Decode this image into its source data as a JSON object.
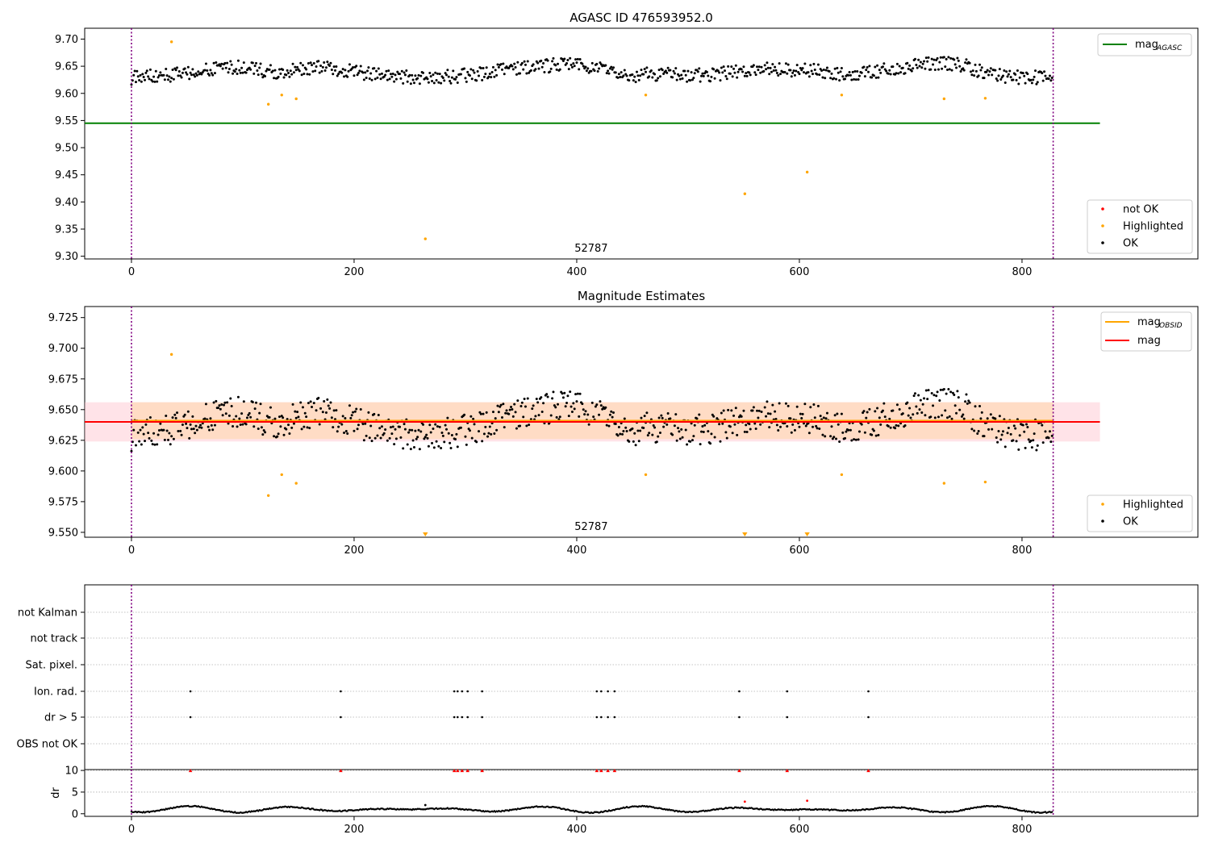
{
  "colors": {
    "ok": "#000000",
    "highlighted": "#ffa500",
    "not_ok": "#ff0000",
    "agasc_line": "#008000",
    "obsid_line": "#ffa500",
    "mag_line": "#ff0000",
    "obsid_band": "#ffdab9",
    "mag_band": "#ffc0cb",
    "boundary": "#800080",
    "grid": "#b0b0b0"
  },
  "chart_data": [
    {
      "type": "scatter",
      "title": "AGASC ID 476593952.0",
      "xlim": [
        -42,
        958
      ],
      "ylim": [
        9.295,
        9.72
      ],
      "xticks": [
        0,
        200,
        400,
        600,
        800
      ],
      "yticks": [
        9.3,
        9.35,
        9.4,
        9.45,
        9.5,
        9.55,
        9.6,
        9.65,
        9.7
      ],
      "ytick_labels": [
        "9.30",
        "9.35",
        "9.40",
        "9.45",
        "9.50",
        "9.55",
        "9.60",
        "9.65",
        "9.70"
      ],
      "hline": {
        "name": "mag",
        "subscript": "AGASC",
        "y": 9.545,
        "x_range": [
          -42,
          870
        ]
      },
      "obsid_boundaries": [
        0,
        828
      ],
      "obsid_labels": [
        {
          "x": 413,
          "text": "52787"
        }
      ],
      "series": [
        {
          "name": "not OK",
          "values": []
        },
        {
          "name": "Highlighted",
          "points": [
            [
              36,
              9.695
            ],
            [
              123,
              9.58
            ],
            [
              135,
              9.597
            ],
            [
              148,
              9.59
            ],
            [
              264,
              9.332
            ],
            [
              462,
              9.597
            ],
            [
              551,
              9.415
            ],
            [
              607,
              9.455
            ],
            [
              638,
              9.597
            ],
            [
              730,
              9.59
            ],
            [
              767,
              9.591
            ]
          ]
        },
        {
          "name": "OK",
          "n": 828,
          "note": "dense track around 9.61–9.68"
        }
      ],
      "legend": [
        "not OK",
        "Highlighted",
        "OK"
      ],
      "legend_upper": [
        "mag_AGASC"
      ]
    },
    {
      "type": "scatter",
      "title": "Magnitude Estimates",
      "xlim": [
        -42,
        958
      ],
      "ylim": [
        9.546,
        9.734
      ],
      "xticks": [
        0,
        200,
        400,
        600,
        800
      ],
      "yticks": [
        9.55,
        9.575,
        9.6,
        9.625,
        9.65,
        9.675,
        9.7,
        9.725
      ],
      "ytick_labels": [
        "9.550",
        "9.575",
        "9.600",
        "9.625",
        "9.650",
        "9.675",
        "9.700",
        "9.725"
      ],
      "mag_line": {
        "name": "mag",
        "y": 9.64,
        "band": [
          9.624,
          9.656
        ],
        "x_range": [
          -42,
          870
        ]
      },
      "obsid_line": {
        "name": "mag",
        "subscript": "OBSID",
        "y": 9.641,
        "band": [
          9.626,
          9.656
        ],
        "x_range": [
          0,
          828
        ]
      },
      "out_of_range_markers": [
        264,
        551,
        607
      ],
      "obsid_labels": [
        {
          "x": 413,
          "text": "52787"
        }
      ],
      "legend": [
        "Highlighted",
        "OK"
      ],
      "legend_upper": [
        "mag_OBSID",
        "mag"
      ]
    },
    {
      "type": "scatter",
      "title": "",
      "xlim": [
        -42,
        958
      ],
      "categories": [
        "not Kalman",
        "not track",
        "Sat. pixel.",
        "Ion. rad.",
        "dr > 5",
        "OBS not OK"
      ],
      "flag_points": {
        "Ion. rad.": [
          53,
          188,
          290,
          293,
          297,
          302,
          315,
          418,
          422,
          428,
          434,
          546,
          589,
          662
        ],
        "dr > 5": [
          53,
          188,
          290,
          293,
          297,
          302,
          315,
          418,
          422,
          428,
          434,
          546,
          589,
          662
        ]
      }
    },
    {
      "type": "scatter",
      "title": "",
      "ylabel": "dr",
      "xlim": [
        -42,
        958
      ],
      "ylim": [
        -0.6,
        10.2
      ],
      "xticks": [
        0,
        200,
        400,
        600,
        800
      ],
      "yticks": [
        0,
        5,
        10
      ],
      "clipped_at_10": [
        53,
        188,
        290,
        293,
        297,
        302,
        315,
        418,
        422,
        428,
        434,
        546,
        589,
        662
      ],
      "outliers": [
        [
          264,
          2.0
        ],
        [
          551,
          2.8
        ],
        [
          607,
          3.0
        ]
      ],
      "n": 828,
      "note": "baseline dr oscillates between ~0.2 and ~1.8"
    }
  ],
  "axes": {
    "top": {
      "title": "AGASC ID 476593952.0",
      "legend_upper": [
        "mag",
        "AGASC"
      ],
      "legend_lower": [
        "not OK",
        "Highlighted",
        "OK"
      ]
    },
    "mid": {
      "title": "Magnitude Estimates",
      "legend_upper": [
        "mag",
        "OBSID",
        "mag"
      ],
      "legend_lower": [
        "Highlighted",
        "OK"
      ]
    },
    "flags": {
      "labels": [
        "not Kalman",
        "not track",
        "Sat. pixel.",
        "Ion. rad.",
        "dr > 5",
        "OBS not OK"
      ]
    },
    "dr": {
      "ylabel": "dr"
    }
  }
}
